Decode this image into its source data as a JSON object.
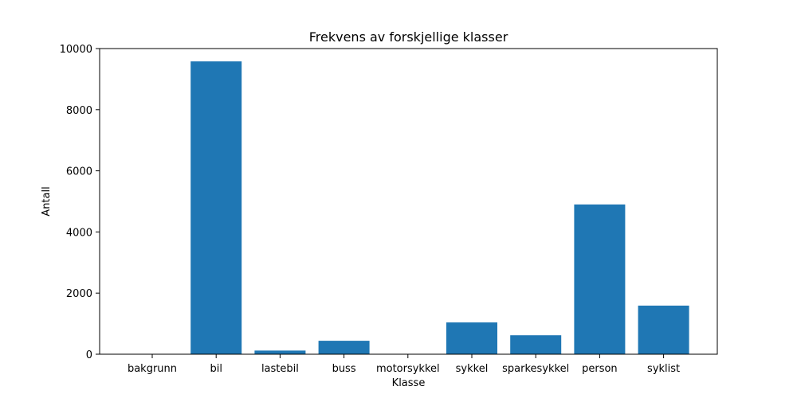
{
  "chart_data": {
    "type": "bar",
    "title": "Frekvens av forskjellige klasser",
    "xlabel": "Klasse",
    "ylabel": "Antall",
    "categories": [
      "bakgrunn",
      "bil",
      "lastebil",
      "buss",
      "motorsykkel",
      "sykkel",
      "sparkesykkel",
      "person",
      "syklist"
    ],
    "values": [
      0,
      9580,
      120,
      440,
      0,
      1040,
      620,
      4900,
      1590
    ],
    "ylim": [
      0,
      10000
    ],
    "yticks": [
      0,
      2000,
      4000,
      6000,
      8000,
      10000
    ],
    "ytick_labels": [
      "0",
      "2000",
      "4000",
      "6000",
      "8000",
      "10000"
    ],
    "bar_color": "#1f77b4",
    "grid": false,
    "legend": "none"
  }
}
